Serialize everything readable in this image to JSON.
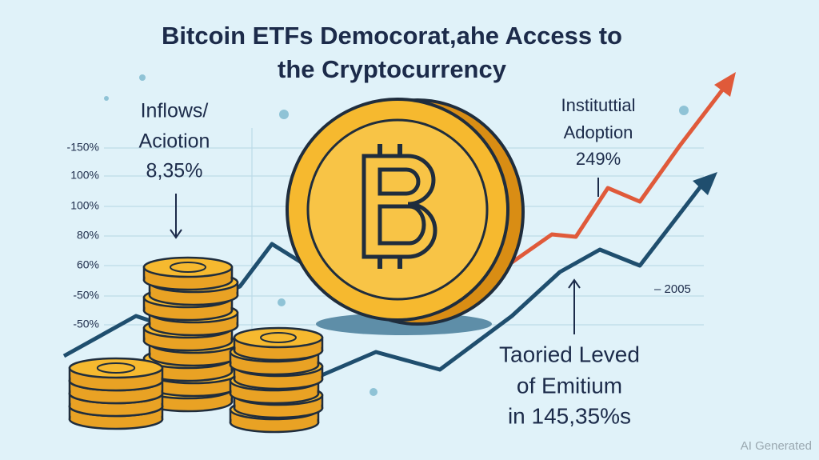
{
  "title": [
    "Bitcoin ETFs Democorat,ahe Access to",
    "the Cryptocurrency"
  ],
  "axis_labels": [
    "-150%",
    "100%",
    "100%",
    "80%",
    "60%",
    "-50%",
    "-50%"
  ],
  "callouts": {
    "inflows": [
      "Inflows/",
      "Aciotion",
      "8,35%"
    ],
    "adoption": [
      "Instituttial",
      "Adoption",
      "249%"
    ],
    "marker": "– 2005",
    "bottom": [
      "Taoried Leved",
      "of Emitium",
      "in 145,35%s"
    ]
  },
  "watermark": "AI Generated"
}
